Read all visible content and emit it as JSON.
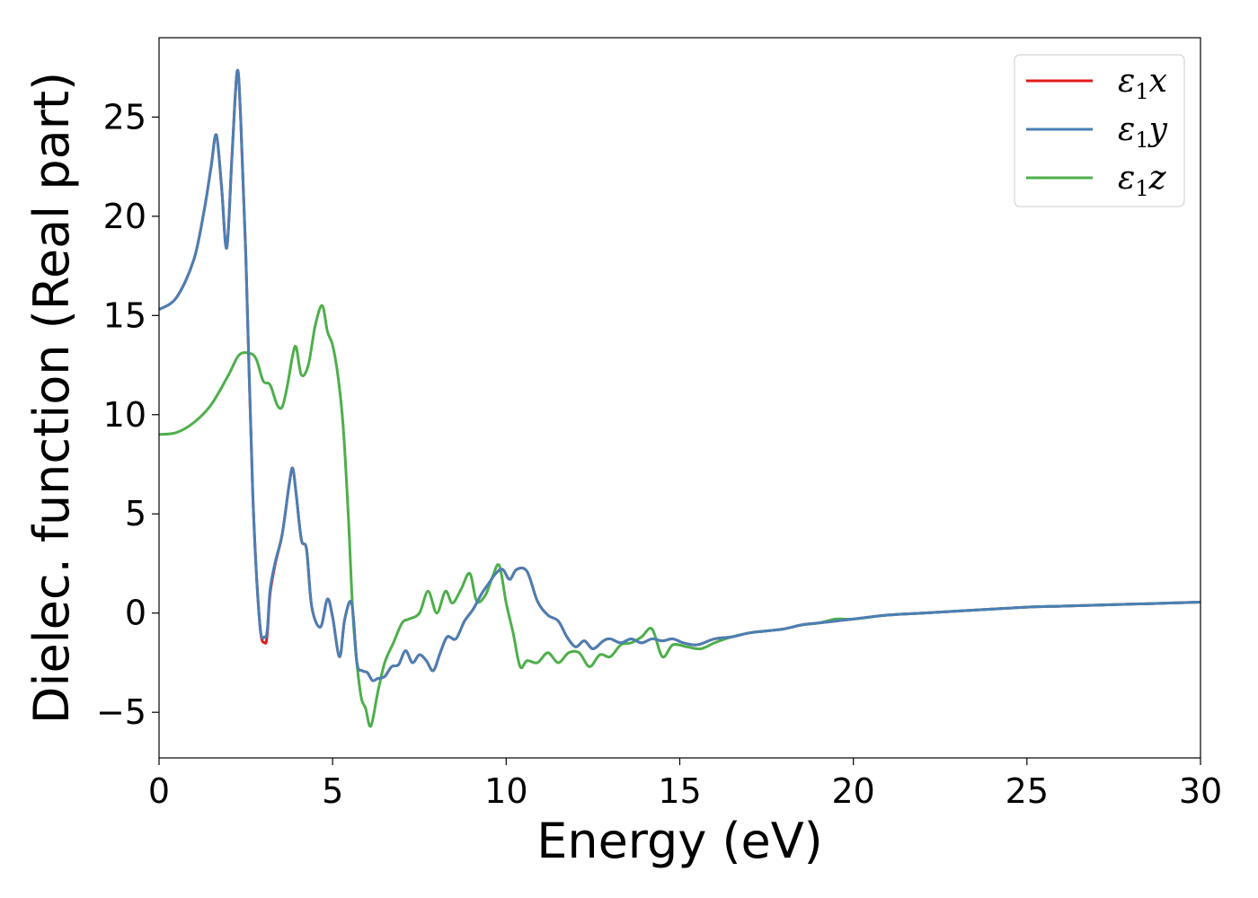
{
  "chart_data": {
    "type": "line",
    "title": "",
    "xlabel": "Energy (eV)",
    "ylabel": "Dielec. function (Real part)",
    "xlim": [
      0,
      30
    ],
    "ylim": [
      -7.3,
      29.0
    ],
    "xticks": [
      0,
      5,
      10,
      15,
      20,
      25,
      30
    ],
    "xtick_labels": [
      "0",
      "5",
      "10",
      "15",
      "20",
      "25",
      "30"
    ],
    "yticks": [
      -5,
      0,
      5,
      10,
      15,
      20,
      25
    ],
    "ytick_labels": [
      "−5",
      "0",
      "5",
      "10",
      "15",
      "20",
      "25"
    ],
    "grid": false,
    "legend_position": "top-right",
    "series": [
      {
        "name": "ε₁x",
        "legend_main": "ε",
        "legend_sub": "1",
        "legend_tail": "x",
        "color": "#e41a1c",
        "x": [
          0,
          0.5,
          1.0,
          1.3,
          1.5,
          1.65,
          1.8,
          1.95,
          2.1,
          2.25,
          2.35,
          2.5,
          2.7,
          2.9,
          3.05,
          3.12,
          3.2,
          3.35,
          3.55,
          3.75,
          3.85,
          3.95,
          4.1,
          4.25,
          4.4,
          4.65,
          4.85,
          5.0,
          5.2,
          5.35,
          5.55,
          5.7,
          5.85,
          6.0,
          6.15,
          6.3,
          6.5,
          6.7,
          6.9,
          7.1,
          7.3,
          7.5,
          7.7,
          7.9,
          8.1,
          8.3,
          8.55,
          8.8,
          9.05,
          9.3,
          9.5,
          9.7,
          9.9,
          10.1,
          10.3,
          10.6,
          10.9,
          11.2,
          11.5,
          11.75,
          12.0,
          12.25,
          12.5,
          12.8,
          13.0,
          13.3,
          13.6,
          13.9,
          14.2,
          14.5,
          14.8,
          15.1,
          15.5,
          16.0,
          16.5,
          17.0,
          17.5,
          18.0,
          18.5,
          19.0,
          19.5,
          20.0,
          21.0,
          22.0,
          23.0,
          24.0,
          25.0,
          26.0,
          27.0,
          28.0,
          29.0,
          30.0
        ],
        "y": [
          15.3,
          15.9,
          17.8,
          20.3,
          22.5,
          24.1,
          21.5,
          18.4,
          23.0,
          27.3,
          25.0,
          18.0,
          6.0,
          -0.5,
          -1.5,
          -1.0,
          1.0,
          2.5,
          4.0,
          6.5,
          7.3,
          6.0,
          3.7,
          3.2,
          0.3,
          -0.7,
          0.7,
          -0.2,
          -2.2,
          -0.3,
          0.5,
          -2.5,
          -2.9,
          -3.0,
          -3.4,
          -3.3,
          -3.2,
          -2.7,
          -2.6,
          -1.9,
          -2.5,
          -2.1,
          -2.4,
          -2.9,
          -2.0,
          -1.2,
          -1.3,
          -0.4,
          0.2,
          1.0,
          1.5,
          2.0,
          2.2,
          1.7,
          2.2,
          2.1,
          0.6,
          -0.1,
          -0.4,
          -1.2,
          -1.7,
          -1.4,
          -1.8,
          -1.4,
          -1.3,
          -1.5,
          -1.3,
          -1.5,
          -1.3,
          -1.4,
          -1.3,
          -1.5,
          -1.6,
          -1.3,
          -1.2,
          -1.0,
          -0.9,
          -0.8,
          -0.6,
          -0.5,
          -0.4,
          -0.3,
          -0.1,
          0.0,
          0.1,
          0.2,
          0.3,
          0.35,
          0.4,
          0.45,
          0.5,
          0.55
        ]
      },
      {
        "name": "ε₁y",
        "legend_main": "ε",
        "legend_sub": "1",
        "legend_tail": "y",
        "color": "#4a7fb5",
        "x": [
          0,
          0.5,
          1.0,
          1.3,
          1.5,
          1.65,
          1.8,
          1.95,
          2.1,
          2.25,
          2.35,
          2.5,
          2.7,
          2.9,
          3.05,
          3.12,
          3.2,
          3.35,
          3.55,
          3.75,
          3.85,
          3.95,
          4.1,
          4.25,
          4.4,
          4.65,
          4.85,
          5.0,
          5.2,
          5.35,
          5.55,
          5.7,
          5.85,
          6.0,
          6.15,
          6.3,
          6.5,
          6.7,
          6.9,
          7.1,
          7.3,
          7.5,
          7.7,
          7.9,
          8.1,
          8.3,
          8.55,
          8.8,
          9.05,
          9.3,
          9.5,
          9.7,
          9.9,
          10.1,
          10.3,
          10.6,
          10.9,
          11.2,
          11.5,
          11.75,
          12.0,
          12.25,
          12.5,
          12.8,
          13.0,
          13.3,
          13.6,
          13.9,
          14.2,
          14.5,
          14.8,
          15.1,
          15.5,
          16.0,
          16.5,
          17.0,
          17.5,
          18.0,
          18.5,
          19.0,
          19.5,
          20.0,
          21.0,
          22.0,
          23.0,
          24.0,
          25.0,
          26.0,
          27.0,
          28.0,
          29.0,
          30.0
        ],
        "y": [
          15.3,
          15.9,
          17.8,
          20.3,
          22.5,
          24.1,
          21.5,
          18.4,
          23.0,
          27.3,
          25.0,
          18.0,
          6.0,
          -0.5,
          -1.2,
          -0.8,
          1.2,
          2.6,
          4.0,
          6.5,
          7.3,
          6.0,
          3.7,
          3.2,
          0.3,
          -0.7,
          0.7,
          -0.2,
          -2.2,
          -0.3,
          0.5,
          -2.5,
          -2.9,
          -3.0,
          -3.4,
          -3.3,
          -3.2,
          -2.7,
          -2.6,
          -1.9,
          -2.5,
          -2.1,
          -2.4,
          -2.9,
          -2.0,
          -1.2,
          -1.3,
          -0.4,
          0.2,
          1.0,
          1.5,
          2.0,
          2.2,
          1.7,
          2.2,
          2.1,
          0.6,
          -0.1,
          -0.4,
          -1.2,
          -1.7,
          -1.4,
          -1.8,
          -1.4,
          -1.3,
          -1.5,
          -1.3,
          -1.5,
          -1.3,
          -1.4,
          -1.3,
          -1.5,
          -1.6,
          -1.3,
          -1.2,
          -1.0,
          -0.9,
          -0.8,
          -0.6,
          -0.5,
          -0.4,
          -0.3,
          -0.1,
          0.0,
          0.1,
          0.2,
          0.3,
          0.35,
          0.4,
          0.45,
          0.5,
          0.55
        ]
      },
      {
        "name": "ε₁z",
        "legend_main": "ε",
        "legend_sub": "1",
        "legend_tail": "z",
        "color": "#4daf4a",
        "x": [
          0,
          0.5,
          1.0,
          1.5,
          2.0,
          2.3,
          2.6,
          2.8,
          3.0,
          3.2,
          3.4,
          3.55,
          3.7,
          3.85,
          3.95,
          4.1,
          4.3,
          4.5,
          4.7,
          4.85,
          5.0,
          5.15,
          5.3,
          5.45,
          5.6,
          5.8,
          5.95,
          6.1,
          6.3,
          6.5,
          6.75,
          7.0,
          7.2,
          7.5,
          7.75,
          8.0,
          8.25,
          8.45,
          8.7,
          8.95,
          9.15,
          9.4,
          9.6,
          9.8,
          10.0,
          10.2,
          10.4,
          10.6,
          10.9,
          11.2,
          11.5,
          11.8,
          12.1,
          12.4,
          12.7,
          13.0,
          13.3,
          13.6,
          13.9,
          14.2,
          14.5,
          14.8,
          15.2,
          15.6,
          16.0,
          16.5,
          17.0,
          17.5,
          18.0,
          18.5,
          19.0,
          19.5,
          20.0,
          21.0,
          22.0,
          23.0,
          24.0,
          25.0,
          26.0,
          27.0,
          28.0,
          29.0,
          30.0
        ],
        "y": [
          9.0,
          9.1,
          9.6,
          10.5,
          12.0,
          13.0,
          13.1,
          12.8,
          11.7,
          11.5,
          10.5,
          10.4,
          11.5,
          13.0,
          13.4,
          12.0,
          12.5,
          14.5,
          15.5,
          14.2,
          13.5,
          12.0,
          9.5,
          5.0,
          -0.5,
          -4.0,
          -4.8,
          -5.7,
          -4.0,
          -2.5,
          -1.5,
          -0.5,
          -0.3,
          0.0,
          1.1,
          0.0,
          1.1,
          0.5,
          1.2,
          2.0,
          0.6,
          0.9,
          1.8,
          2.4,
          0.5,
          -1.0,
          -2.7,
          -2.4,
          -2.5,
          -2.0,
          -2.5,
          -2.0,
          -2.0,
          -2.7,
          -2.1,
          -2.2,
          -1.6,
          -1.5,
          -1.2,
          -0.8,
          -2.2,
          -1.6,
          -1.7,
          -1.8,
          -1.5,
          -1.2,
          -1.0,
          -0.9,
          -0.8,
          -0.6,
          -0.5,
          -0.3,
          -0.3,
          -0.1,
          0.0,
          0.1,
          0.2,
          0.3,
          0.35,
          0.4,
          0.45,
          0.5,
          0.55
        ]
      }
    ]
  }
}
